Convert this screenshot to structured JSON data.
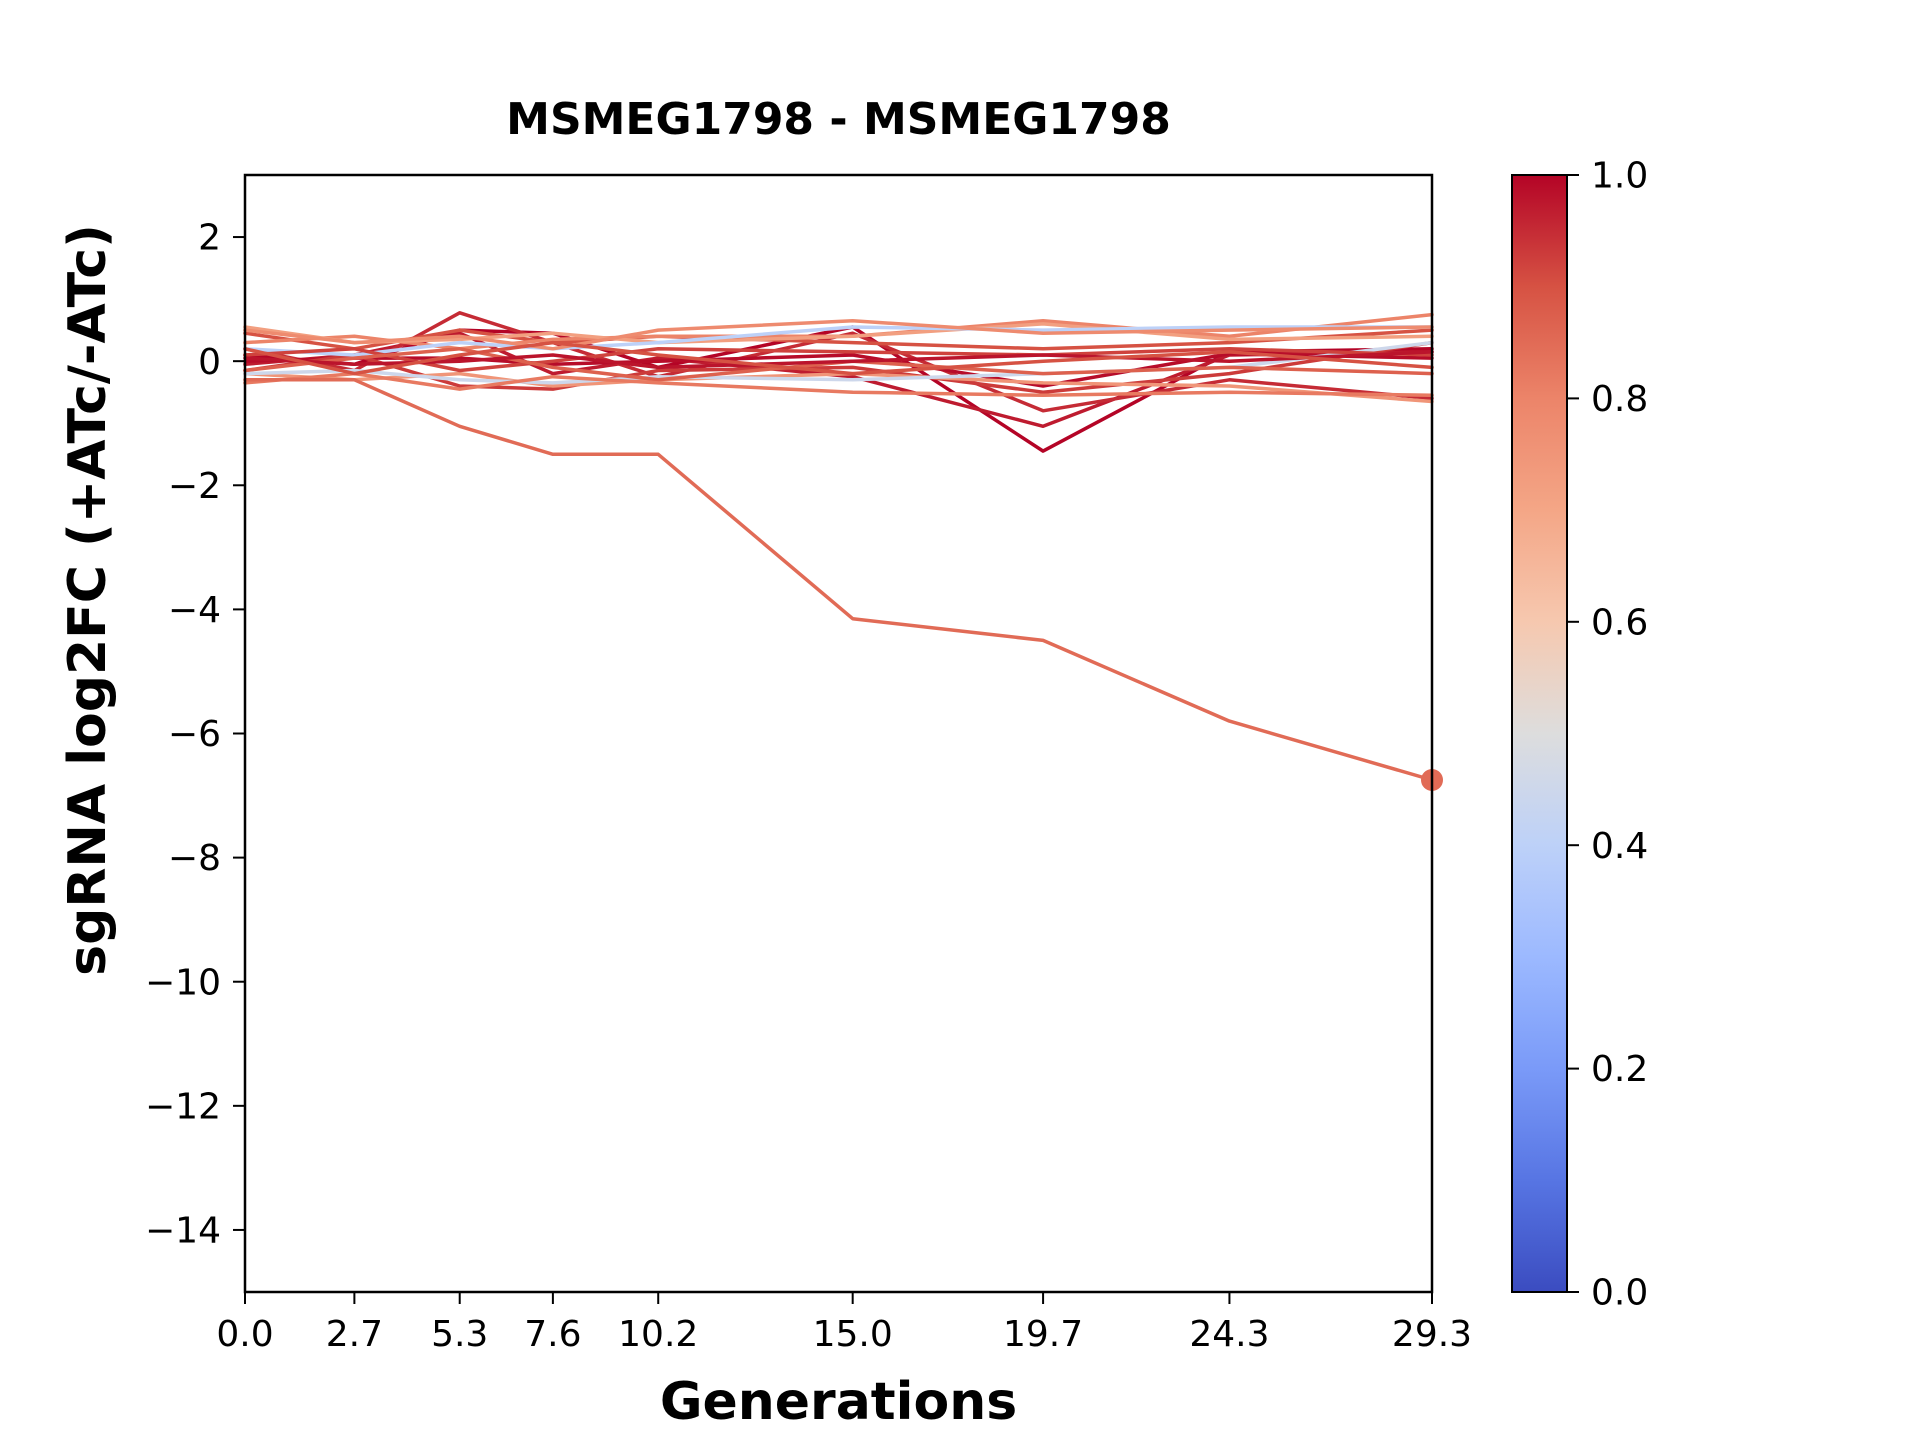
{
  "chart_data": {
    "type": "line",
    "title": "MSMEG1798 - MSMEG1798",
    "xlabel": "Generations",
    "ylabel": "sgRNA log2FC (+ATc/-ATc)",
    "x": [
      0.0,
      2.7,
      5.3,
      7.6,
      10.2,
      15.0,
      19.7,
      24.3,
      29.3
    ],
    "x_tick_labels": [
      "0.0",
      "2.7",
      "5.3",
      "7.6",
      "10.2",
      "15.0",
      "19.7",
      "24.3",
      "29.3"
    ],
    "y_ticks": [
      2,
      0,
      -2,
      -4,
      -6,
      -8,
      -10,
      -12,
      -14
    ],
    "y_tick_labels": [
      "2",
      "0",
      "−2",
      "−4",
      "−6",
      "−8",
      "−10",
      "−12",
      "−14"
    ],
    "xlim": [
      0,
      29.3
    ],
    "ylim": [
      -15,
      3
    ],
    "grid": false,
    "legend": false,
    "line_width": 3.5,
    "series": [
      {
        "cmap_value": 1.0,
        "values": [
          0.1,
          -0.05,
          0.5,
          0.45,
          -0.1,
          0.55,
          -1.45,
          0.15,
          0.2
        ]
      },
      {
        "cmap_value": 0.97,
        "values": [
          -0.05,
          0.1,
          0.45,
          -0.2,
          0.05,
          -0.25,
          -1.05,
          0.1,
          0.15
        ]
      },
      {
        "cmap_value": 0.95,
        "values": [
          0.2,
          -0.15,
          0.78,
          0.3,
          -0.25,
          0.45,
          -0.8,
          -0.3,
          -0.6
        ]
      },
      {
        "cmap_value": 0.99,
        "values": [
          0.0,
          0.05,
          0.05,
          -0.05,
          0.0,
          0.1,
          -0.4,
          0.12,
          0.05
        ]
      },
      {
        "cmap_value": 0.93,
        "values": [
          -0.15,
          0.1,
          -0.4,
          -0.45,
          -0.15,
          -0.1,
          -0.5,
          -0.2,
          0.3
        ]
      },
      {
        "cmap_value": 0.9,
        "values": [
          0.45,
          0.2,
          0.5,
          0.3,
          0.4,
          0.3,
          0.2,
          0.3,
          0.5
        ]
      },
      {
        "cmap_value": 0.8,
        "values": [
          0.3,
          0.4,
          0.2,
          0.35,
          0.4,
          0.4,
          0.65,
          0.4,
          0.75
        ]
      },
      {
        "cmap_value": 0.75,
        "values": [
          -0.2,
          -0.3,
          -0.2,
          -0.4,
          -0.3,
          -0.2,
          -0.35,
          -0.4,
          -0.65
        ]
      },
      {
        "cmap_value": 0.72,
        "values": [
          0.55,
          0.3,
          0.35,
          0.45,
          0.3,
          0.4,
          0.6,
          0.35,
          0.4
        ]
      },
      {
        "cmap_value": 0.4,
        "values": [
          0.2,
          0.1,
          0.3,
          0.2,
          0.3,
          0.55,
          0.5,
          0.55,
          0.55
        ]
      },
      {
        "cmap_value": 0.45,
        "values": [
          -0.2,
          -0.15,
          -0.3,
          -0.35,
          -0.25,
          -0.3,
          -0.2,
          -0.1,
          0.3
        ]
      },
      {
        "cmap_value": 0.92,
        "values": [
          0.1,
          0.2,
          -0.15,
          0.0,
          0.2,
          0.15,
          0.1,
          0.2,
          0.1
        ]
      },
      {
        "cmap_value": 0.87,
        "values": [
          -0.15,
          0.05,
          0.2,
          -0.1,
          -0.3,
          0.0,
          -0.2,
          -0.1,
          -0.2
        ]
      },
      {
        "cmap_value": 0.98,
        "values": [
          0.05,
          -0.05,
          0.0,
          0.1,
          -0.1,
          0.0,
          0.1,
          0.0,
          0.15
        ]
      },
      {
        "cmap_value": 0.78,
        "values": [
          0.5,
          0.3,
          0.4,
          0.2,
          0.5,
          0.65,
          0.45,
          0.5,
          0.55
        ]
      },
      {
        "cmap_value": 0.82,
        "values": [
          -0.35,
          -0.2,
          -0.45,
          -0.25,
          -0.35,
          -0.5,
          -0.55,
          -0.5,
          -0.55
        ]
      },
      {
        "cmap_value": 0.9,
        "values": [
          0.2,
          -0.2,
          0.1,
          0.3,
          0.1,
          -0.2,
          0.0,
          0.15,
          -0.1
        ]
      },
      {
        "cmap_value": 0.85,
        "marker_end": true,
        "values": [
          -0.3,
          -0.3,
          -1.05,
          -1.5,
          -1.5,
          -4.15,
          -4.5,
          -5.8,
          -6.75
        ]
      }
    ],
    "colorbar": {
      "cmap": "coolwarm",
      "range": [
        0,
        1
      ],
      "ticks": [
        "1.0",
        "0.8",
        "0.6",
        "0.4",
        "0.2",
        "0.0"
      ],
      "color_low": "#3b4cc0",
      "color_mid": "#dddddd",
      "color_high": "#b40426"
    }
  }
}
